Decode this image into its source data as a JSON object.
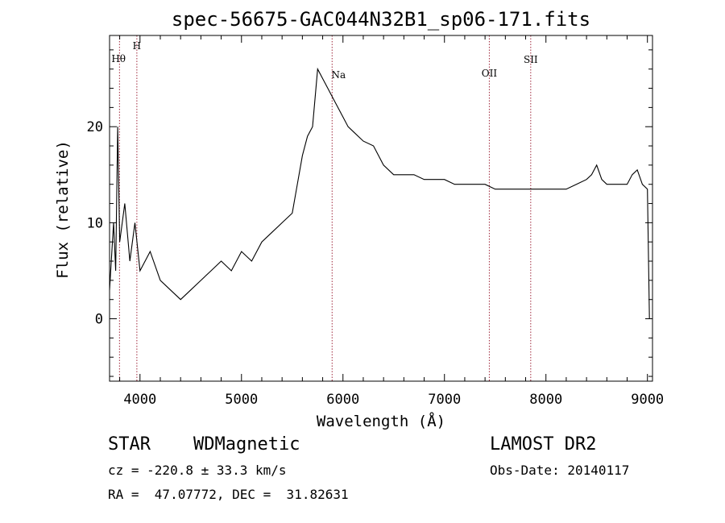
{
  "chart_data": {
    "type": "line",
    "title": "spec-56675-GAC044N32B1_sp06-171.fits",
    "xlabel": "Wavelength (Å)",
    "ylabel": "Flux (relative)",
    "xlim": [
      3700,
      9050
    ],
    "ylim": [
      -6.5,
      29.5
    ],
    "xticks": [
      4000,
      5000,
      6000,
      7000,
      8000,
      9000
    ],
    "yticks": [
      0,
      10,
      20
    ],
    "grid": false,
    "series": [
      {
        "x": [
          3700,
          3740,
          3760,
          3780,
          3800,
          3850,
          3900,
          3950,
          4000,
          4100,
          4200,
          4300,
          4400,
          4500,
          4600,
          4700,
          4800,
          4900,
          5000,
          5100,
          5200,
          5300,
          5400,
          5500,
          5550,
          5600,
          5650,
          5700,
          5750,
          5800,
          5850,
          5900,
          5950,
          6000,
          6050,
          6100,
          6200,
          6300,
          6400,
          6500,
          6600,
          6700,
          6800,
          6900,
          7000,
          7100,
          7200,
          7300,
          7400,
          7500,
          7600,
          7700,
          7800,
          7900,
          8000,
          8100,
          8200,
          8300,
          8400,
          8450,
          8500,
          8550,
          8600,
          8700,
          8800,
          8850,
          8900,
          8950,
          9000,
          9020
        ],
        "y": [
          3,
          10,
          5,
          20,
          8,
          12,
          6,
          10,
          5,
          7,
          4,
          3,
          2,
          3,
          4,
          5,
          6,
          5,
          7,
          6,
          8,
          9,
          10,
          11,
          14,
          17,
          19,
          20,
          26,
          25,
          24,
          23,
          22,
          21,
          20,
          19.5,
          18.5,
          18,
          16,
          15,
          15,
          15,
          14.5,
          14.5,
          14.5,
          14,
          14,
          14,
          14,
          13.5,
          13.5,
          13.5,
          13.5,
          13.5,
          13.5,
          13.5,
          13.5,
          14,
          14.5,
          15,
          16,
          14.5,
          14,
          14,
          14,
          15,
          15.5,
          14,
          13.5,
          0
        ]
      }
    ],
    "lines": [
      {
        "label": "Hθ",
        "x": 3798
      },
      {
        "label": "H",
        "x": 3969
      },
      {
        "label": "Na",
        "x": 5893
      },
      {
        "label": "OII",
        "x": 7442
      },
      {
        "label": "SII",
        "x": 7850
      }
    ]
  },
  "footer": {
    "class": "STAR",
    "subclass": "WDMagnetic",
    "survey": "LAMOST DR2",
    "cz": "cz = -220.8 ± 33.3 km/s",
    "obs_date": "Obs-Date: 20140117",
    "coords": "RA =  47.07772, DEC =  31.82631"
  }
}
